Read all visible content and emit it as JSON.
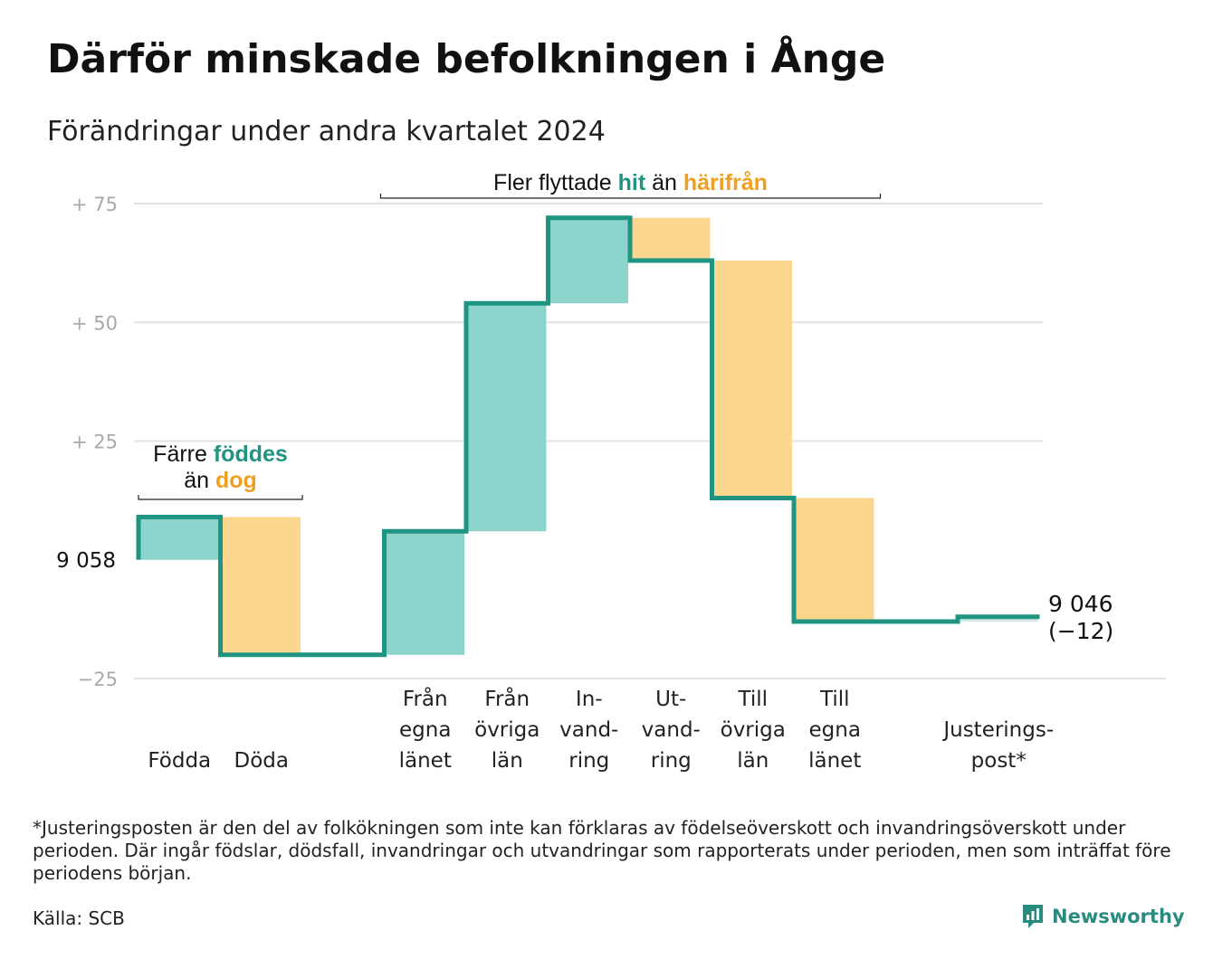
{
  "title": "Därför minskade befolkningen i Ånge",
  "subtitle": "Förändringar under andra kvartalet 2024",
  "colors": {
    "inflow": "#8dd5cc",
    "outflow": "#fbd68e",
    "line": "#1f9481",
    "grid": "#e3e3e3",
    "accent_teal": "#1f9481",
    "accent_orange": "#f0a020"
  },
  "chart_data": {
    "type": "waterfall",
    "start_value": 9058,
    "start_label": "9 058",
    "end_value": 9046,
    "end_label": "9 046",
    "end_change_label": "(−12)",
    "y_ticks": [
      {
        "value": 75,
        "label": "+  75"
      },
      {
        "value": 50,
        "label": "+  50"
      },
      {
        "value": 25,
        "label": "+  25"
      },
      {
        "value": -25,
        "label": "−25"
      }
    ],
    "ylim": [
      -25,
      75
    ],
    "steps": [
      {
        "name": "Födda",
        "label_lines": [
          "Födda"
        ],
        "change": 9,
        "kind": "in"
      },
      {
        "name": "Döda",
        "label_lines": [
          "Döda"
        ],
        "change": -29,
        "kind": "out"
      },
      {
        "name": "",
        "label_lines": [],
        "change": 0,
        "kind": "none"
      },
      {
        "name": "Från egna länet",
        "label_lines": [
          "Från",
          "egna",
          "länet"
        ],
        "change": 26,
        "kind": "in"
      },
      {
        "name": "Från övriga län",
        "label_lines": [
          "Från",
          "övriga",
          "län"
        ],
        "change": 48,
        "kind": "in"
      },
      {
        "name": "Invandring",
        "label_lines": [
          "In-",
          "vand-",
          "ring"
        ],
        "change": 18,
        "kind": "in"
      },
      {
        "name": "Utvandring",
        "label_lines": [
          "Ut-",
          "vand-",
          "ring"
        ],
        "change": -9,
        "kind": "out"
      },
      {
        "name": "Till övriga län",
        "label_lines": [
          "Till",
          "övriga",
          "län"
        ],
        "change": -50,
        "kind": "out"
      },
      {
        "name": "Till egna länet",
        "label_lines": [
          "Till",
          "egna",
          "länet"
        ],
        "change": -26,
        "kind": "out"
      },
      {
        "name": "",
        "label_lines": [],
        "change": 0,
        "kind": "none"
      },
      {
        "name": "Justeringspost*",
        "label_lines": [
          "Justerings-",
          "post*"
        ],
        "change": 1,
        "kind": "adj"
      }
    ],
    "annotations": {
      "births": {
        "line1_pre": "Färre ",
        "line1_bold": "föddes",
        "line2_pre": "än ",
        "line2_bold": "dog"
      },
      "migration": {
        "pre": "Fler flyttade ",
        "bold1": "hit",
        "mid": " än ",
        "bold2": "härifrån"
      }
    }
  },
  "footnote": "*Justeringsposten är den del av folkökningen som inte kan förklaras av födelseöverskott och invandringsöverskott under perioden. Där ingår födslar, dödsfall, invandringar och utvandringar som rapporterats under perioden, men som inträffat före periodens början.",
  "source": "Källa: SCB",
  "brand": {
    "name": "Newsworthy",
    "icon": "newsworthy-logo-icon"
  }
}
